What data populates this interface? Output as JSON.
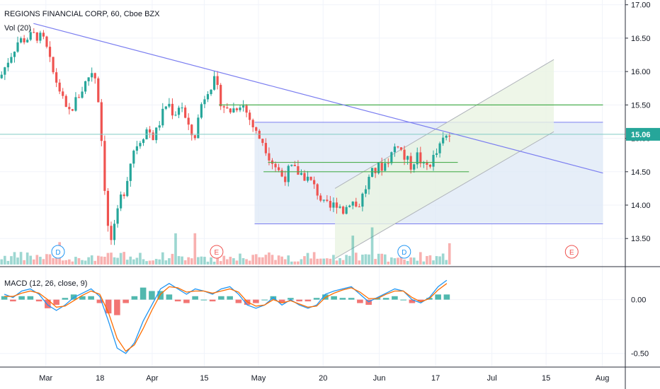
{
  "header": {
    "symbol_line": "REGIONS FINANCIAL CORP, 60, Cboe BZX",
    "volume_label": "Vol (20)",
    "macd_label": "MACD (12, 26, close, 9)"
  },
  "current_price": "15.06",
  "colors": {
    "up": "#26a69a",
    "down": "#ef5350",
    "trendline": "#7b7ef0",
    "green_line": "#4caf50",
    "box_fill": "#dde8f6",
    "channel_fill": "#eaf4e2",
    "macd": "#2196f3",
    "signal": "#ff6d00",
    "price_badge": "#26a69a"
  },
  "chart_data": [
    {
      "type": "candlestick",
      "title": "REGIONS FINANCIAL CORP, 60, Cboe BZX",
      "x_ticks": [
        "Mar",
        "18",
        "Apr",
        "15",
        "May",
        "20",
        "Jun",
        "17",
        "Jul",
        "15",
        "Aug"
      ],
      "y_ticks": [
        "17.00",
        "16.50",
        "16.00",
        "15.50",
        "15.00",
        "14.50",
        "14.00",
        "13.50"
      ],
      "ylim": [
        13.1,
        17.05
      ],
      "current_price": 15.06,
      "price_path": [
        {
          "x": 0,
          "y": 15.9
        },
        {
          "x": 4,
          "y": 16.2
        },
        {
          "x": 8,
          "y": 16.45
        },
        {
          "x": 12,
          "y": 16.5
        },
        {
          "x": 16,
          "y": 16.55
        },
        {
          "x": 20,
          "y": 16.45
        },
        {
          "x": 23,
          "y": 16.05
        },
        {
          "x": 27,
          "y": 15.7
        },
        {
          "x": 30,
          "y": 15.35
        },
        {
          "x": 33,
          "y": 15.5
        },
        {
          "x": 37,
          "y": 15.75
        },
        {
          "x": 40,
          "y": 15.95
        },
        {
          "x": 42,
          "y": 16.05
        },
        {
          "x": 44,
          "y": 15.6
        },
        {
          "x": 46,
          "y": 14.75
        },
        {
          "x": 48,
          "y": 13.7
        },
        {
          "x": 50,
          "y": 13.45
        },
        {
          "x": 52,
          "y": 13.75
        },
        {
          "x": 54,
          "y": 14.1
        },
        {
          "x": 56,
          "y": 14.25
        },
        {
          "x": 58,
          "y": 14.6
        },
        {
          "x": 60,
          "y": 14.85
        },
        {
          "x": 63,
          "y": 15.0
        },
        {
          "x": 66,
          "y": 15.15
        },
        {
          "x": 69,
          "y": 15.0
        },
        {
          "x": 72,
          "y": 15.3
        },
        {
          "x": 75,
          "y": 15.55
        },
        {
          "x": 78,
          "y": 15.35
        },
        {
          "x": 81,
          "y": 15.55
        },
        {
          "x": 84,
          "y": 15.15
        },
        {
          "x": 87,
          "y": 15.0
        },
        {
          "x": 90,
          "y": 15.5
        },
        {
          "x": 93,
          "y": 15.75
        },
        {
          "x": 96,
          "y": 15.85
        },
        {
          "x": 99,
          "y": 15.55
        },
        {
          "x": 102,
          "y": 15.4
        },
        {
          "x": 105,
          "y": 15.45
        },
        {
          "x": 108,
          "y": 15.55
        },
        {
          "x": 111,
          "y": 15.35
        },
        {
          "x": 113,
          "y": 15.2
        },
        {
          "x": 115,
          "y": 15.05
        },
        {
          "x": 118,
          "y": 14.95
        },
        {
          "x": 121,
          "y": 14.7
        },
        {
          "x": 124,
          "y": 14.55
        },
        {
          "x": 127,
          "y": 14.4
        },
        {
          "x": 130,
          "y": 14.55
        },
        {
          "x": 133,
          "y": 14.5
        },
        {
          "x": 136,
          "y": 14.45
        },
        {
          "x": 139,
          "y": 14.35
        },
        {
          "x": 142,
          "y": 14.2
        },
        {
          "x": 145,
          "y": 14.0
        },
        {
          "x": 148,
          "y": 13.95
        },
        {
          "x": 151,
          "y": 14.05
        },
        {
          "x": 154,
          "y": 13.9
        },
        {
          "x": 157,
          "y": 14.1
        },
        {
          "x": 160,
          "y": 13.95
        },
        {
          "x": 163,
          "y": 14.2
        },
        {
          "x": 166,
          "y": 14.45
        },
        {
          "x": 169,
          "y": 14.55
        },
        {
          "x": 172,
          "y": 14.6
        },
        {
          "x": 175,
          "y": 14.75
        },
        {
          "x": 178,
          "y": 14.95
        },
        {
          "x": 181,
          "y": 14.7
        },
        {
          "x": 184,
          "y": 14.6
        },
        {
          "x": 187,
          "y": 14.75
        },
        {
          "x": 190,
          "y": 14.55
        },
        {
          "x": 193,
          "y": 14.65
        },
        {
          "x": 196,
          "y": 14.8
        },
        {
          "x": 199,
          "y": 15.0
        },
        {
          "x": 202,
          "y": 15.06
        }
      ],
      "candle_count": 140,
      "drawings": {
        "trendline": {
          "start": [
            15,
            16.72
          ],
          "end": [
            270,
            14.48
          ]
        },
        "horizontal_lines": [
          {
            "price": 15.5,
            "from": 98,
            "to": 270,
            "color": "green"
          },
          {
            "price": 14.64,
            "from": 120,
            "to": 205,
            "color": "green"
          },
          {
            "price": 14.5,
            "from": 118,
            "to": 210,
            "color": "green"
          },
          {
            "price": 15.06,
            "from": 0,
            "to": 280,
            "color": "teal"
          }
        ],
        "range_box": {
          "top": 15.24,
          "bottom": 13.72,
          "from": 114,
          "to": 270
        },
        "channel": {
          "lower": [
            [
              150,
              13.2
            ],
            [
              248,
              15.1
            ]
          ],
          "upper": [
            [
              150,
              14.25
            ],
            [
              248,
              16.18
            ]
          ]
        },
        "event_markers": [
          {
            "label": "D",
            "x": 26,
            "color": "#2196f3"
          },
          {
            "label": "E",
            "x": 97,
            "color": "#ef5350"
          },
          {
            "label": "D",
            "x": 181,
            "color": "#2196f3"
          },
          {
            "label": "E",
            "x": 256,
            "color": "#ef5350"
          }
        ]
      }
    },
    {
      "type": "bar",
      "title": "Vol (20)",
      "description": "volume histogram, up/down coloured"
    },
    {
      "type": "line",
      "title": "MACD (12, 26, close, 9)",
      "y_ticks": [
        "0.00",
        "-0.50"
      ],
      "ylim": [
        -0.62,
        0.3
      ],
      "series": [
        {
          "name": "MACD",
          "values": [
            0.05,
            0.02,
            0.08,
            0.1,
            0.05,
            -0.05,
            -0.1,
            -0.05,
            0.02,
            0.06,
            0.1,
            0.03,
            -0.2,
            -0.45,
            -0.5,
            -0.4,
            -0.2,
            -0.05,
            0.1,
            0.15,
            0.1,
            0.05,
            0.1,
            0.08,
            0.05,
            0.1,
            0.12,
            0.05,
            -0.05,
            -0.08,
            -0.05,
            0.02,
            -0.05,
            0.0,
            -0.05,
            -0.08,
            -0.05,
            0.05,
            0.08,
            0.1,
            0.12,
            0.05,
            -0.02,
            0.02,
            0.06,
            0.1,
            0.08,
            0.0,
            -0.03,
            0.02,
            0.12,
            0.18
          ]
        },
        {
          "name": "Signal",
          "values": [
            0.03,
            0.03,
            0.06,
            0.08,
            0.06,
            0.0,
            -0.07,
            -0.06,
            -0.01,
            0.04,
            0.08,
            0.05,
            -0.12,
            -0.36,
            -0.48,
            -0.42,
            -0.27,
            -0.1,
            0.05,
            0.12,
            0.11,
            0.07,
            0.08,
            0.08,
            0.06,
            0.08,
            0.1,
            0.07,
            -0.02,
            -0.06,
            -0.05,
            0.0,
            -0.03,
            -0.01,
            -0.04,
            -0.07,
            -0.06,
            0.02,
            0.06,
            0.09,
            0.11,
            0.07,
            0.01,
            0.01,
            0.05,
            0.08,
            0.08,
            0.02,
            -0.02,
            0.01,
            0.09,
            0.15
          ]
        }
      ]
    }
  ]
}
